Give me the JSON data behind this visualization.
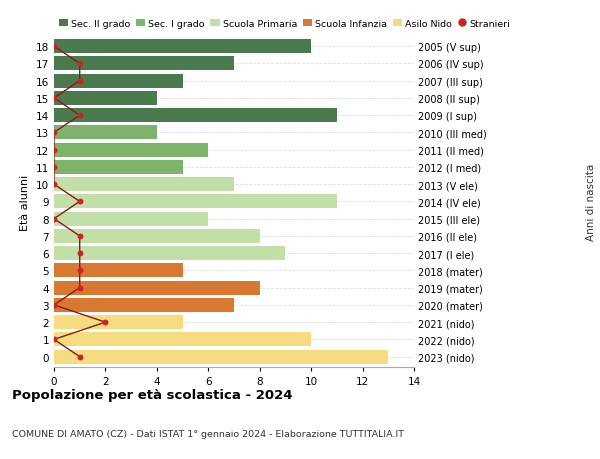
{
  "ages": [
    18,
    17,
    16,
    15,
    14,
    13,
    12,
    11,
    10,
    9,
    8,
    7,
    6,
    5,
    4,
    3,
    2,
    1,
    0
  ],
  "right_labels": [
    "2005 (V sup)",
    "2006 (IV sup)",
    "2007 (III sup)",
    "2008 (II sup)",
    "2009 (I sup)",
    "2010 (III med)",
    "2011 (II med)",
    "2012 (I med)",
    "2013 (V ele)",
    "2014 (IV ele)",
    "2015 (III ele)",
    "2016 (II ele)",
    "2017 (I ele)",
    "2018 (mater)",
    "2019 (mater)",
    "2020 (mater)",
    "2021 (nido)",
    "2022 (nido)",
    "2023 (nido)"
  ],
  "bar_values": [
    10,
    7,
    5,
    4,
    11,
    4,
    6,
    5,
    7,
    11,
    6,
    8,
    9,
    5,
    8,
    7,
    5,
    10,
    13
  ],
  "bar_colors": [
    "#4a7a4e",
    "#4a7a4e",
    "#4a7a4e",
    "#4a7a4e",
    "#4a7a4e",
    "#7db36a",
    "#7db36a",
    "#7db36a",
    "#c2dfa8",
    "#c2dfa8",
    "#c2dfa8",
    "#c2dfa8",
    "#c2dfa8",
    "#d97830",
    "#d97830",
    "#d97830",
    "#f5dc80",
    "#f5dc80",
    "#f5dc80"
  ],
  "stranieri_values": [
    0,
    1,
    1,
    0,
    1,
    0,
    0,
    0,
    0,
    1,
    0,
    1,
    1,
    1,
    1,
    0,
    2,
    0,
    1
  ],
  "legend_labels": [
    "Sec. II grado",
    "Sec. I grado",
    "Scuola Primaria",
    "Scuola Infanzia",
    "Asilo Nido",
    "Stranieri"
  ],
  "legend_colors": [
    "#4a7a4e",
    "#7db36a",
    "#c2dfa8",
    "#d97830",
    "#f5dc80",
    "#b22222"
  ],
  "title": "Popolazione per età scolastica - 2024",
  "subtitle": "COMUNE DI AMATO (CZ) - Dati ISTAT 1° gennaio 2024 - Elaborazione TUTTITALIA.IT",
  "ylabel_left": "Età alunni",
  "ylabel_right": "Anni di nascita",
  "xlim": [
    0,
    14
  ],
  "xticks": [
    0,
    2,
    4,
    6,
    8,
    10,
    12,
    14
  ],
  "background_color": "#ffffff",
  "grid_color": "#dddddd"
}
